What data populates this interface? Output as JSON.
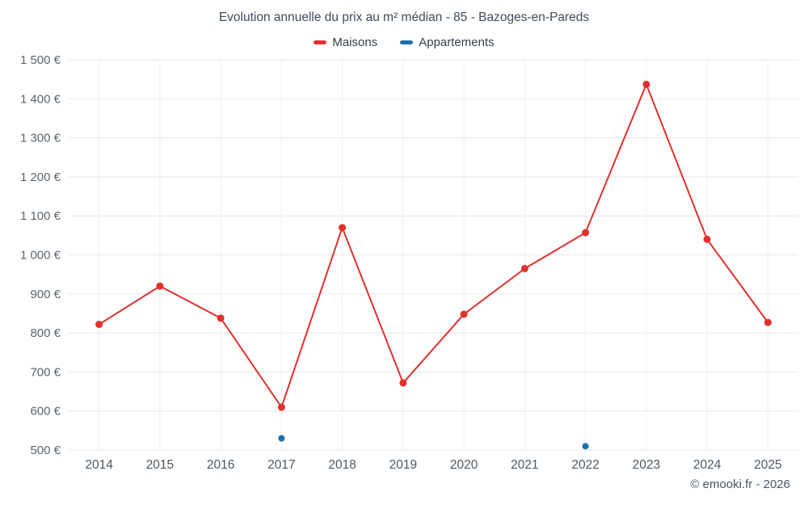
{
  "title": "Evolution annuelle du prix au m² médian - 85 - Bazoges-en-Pareds",
  "footer": "© emooki.fr - 2026",
  "legend": [
    {
      "label": "Maisons",
      "color": "#e0312d"
    },
    {
      "label": "Appartements",
      "color": "#1c6fa8"
    }
  ],
  "chart_data": {
    "type": "line",
    "title": "Evolution annuelle du prix au m² médian - 85 - Bazoges-en-Pareds",
    "xlabel": "",
    "ylabel": "",
    "x": [
      "2014",
      "2015",
      "2016",
      "2017",
      "2018",
      "2019",
      "2020",
      "2021",
      "2022",
      "2023",
      "2024",
      "2025"
    ],
    "series": [
      {
        "name": "Maisons",
        "color": "#e0312d",
        "style": "line+markers",
        "values": [
          822,
          920,
          838,
          610,
          1070,
          672,
          848,
          965,
          1057,
          1437,
          1040,
          827
        ]
      },
      {
        "name": "Appartements",
        "color": "#1c6fa8",
        "style": "markers",
        "values": [
          null,
          null,
          null,
          530,
          null,
          null,
          null,
          null,
          510,
          null,
          null,
          null
        ]
      }
    ],
    "ylim": [
      500,
      1500
    ],
    "ytick_step": 100,
    "ytick_labels": [
      "500 €",
      "600 €",
      "700 €",
      "800 €",
      "900 €",
      "1 000 €",
      "1 100 €",
      "1 200 €",
      "1 300 €",
      "1 400 €",
      "1 500 €"
    ],
    "grid": true,
    "legend_position": "top"
  }
}
